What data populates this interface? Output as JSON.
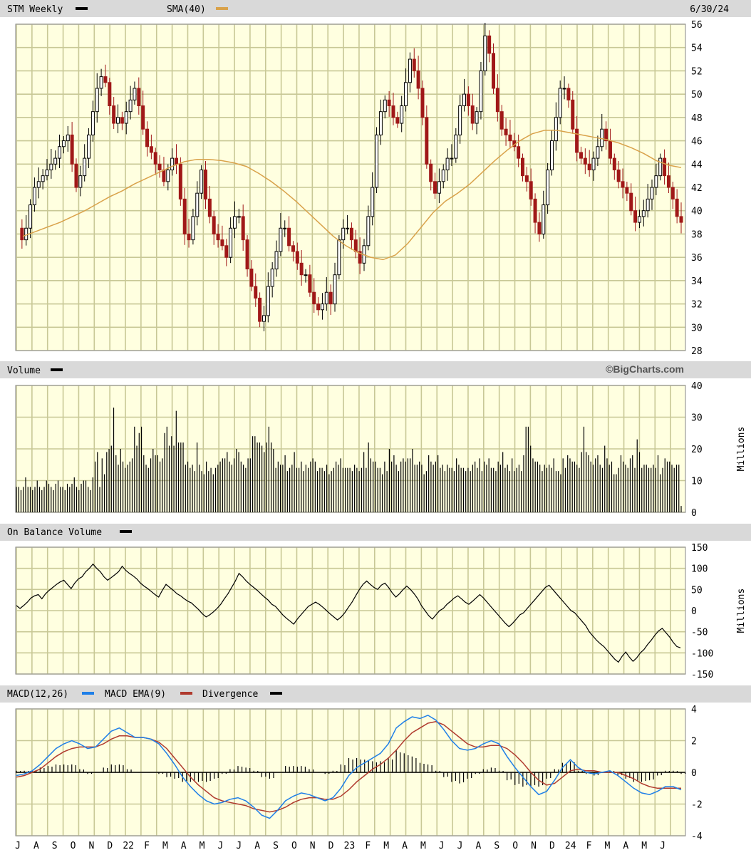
{
  "header": {
    "ticker_label": "STM Weekly",
    "sma_label": "SMA(40)",
    "date": "6/30/24"
  },
  "volume_header": {
    "label": "Volume",
    "watermark": "©BigCharts.com"
  },
  "obv_header": {
    "label": "On Balance Volume"
  },
  "macd_header": {
    "macd_label": "MACD(12,26)",
    "ema_label": "MACD EMA(9)",
    "div_label": "Divergence"
  },
  "x_axis": {
    "month_labels": [
      "J",
      "A",
      "S",
      "O",
      "N",
      "D",
      "22",
      "F",
      "M",
      "A",
      "M",
      "J",
      "J",
      "A",
      "S",
      "O",
      "N",
      "D",
      "23",
      "F",
      "M",
      "A",
      "M",
      "J",
      "J",
      "A",
      "S",
      "O",
      "N",
      "D",
      "24",
      "F",
      "M",
      "A",
      "M",
      "J"
    ]
  },
  "colors": {
    "plot_bg": "#ffffe0",
    "grid": "#c8c896",
    "up": "#000000",
    "down": "#a01818",
    "sma": "#d9a24a",
    "macd": "#1e7fe8",
    "ema": "#b03a2e",
    "header_bg": "#d9d9d9"
  },
  "chart_data": [
    {
      "type": "candlestick",
      "title": "STM Weekly",
      "ylim": [
        28,
        56
      ],
      "yticks": [
        28,
        30,
        32,
        34,
        36,
        38,
        40,
        42,
        44,
        46,
        48,
        50,
        52,
        54,
        56
      ],
      "price_path": [
        38.5,
        37.5,
        38.5,
        40.5,
        42,
        42.5,
        43,
        43.5,
        44,
        44.5,
        45.5,
        46,
        46.5,
        44,
        42,
        43,
        44.5,
        46.5,
        48.5,
        50.5,
        51.5,
        51,
        49,
        47.5,
        48,
        47.5,
        48.5,
        49.5,
        50.5,
        49,
        47,
        45.5,
        45,
        44,
        43.5,
        42.5,
        43.5,
        44.5,
        44,
        41,
        38,
        37.5,
        39.5,
        41.5,
        43.5,
        41,
        39.5,
        38,
        37.5,
        37,
        36,
        38.5,
        39.5,
        39.5,
        37.5,
        35,
        33.5,
        32.5,
        30.5,
        31,
        33.5,
        35,
        36.5,
        38.5,
        38.5,
        37,
        36.5,
        35.5,
        34.5,
        34.5,
        33,
        32,
        31.5,
        32,
        33,
        32,
        34.5,
        37.5,
        38.5,
        38.5,
        37.5,
        36.5,
        35.5,
        37,
        39.5,
        42,
        46.5,
        48.5,
        49.5,
        49,
        48,
        47.5,
        49,
        51,
        53,
        52,
        50.5,
        48,
        44,
        42.5,
        41.5,
        42.5,
        43.5,
        44.5,
        44.5,
        46.5,
        49,
        50,
        49,
        47.5,
        48.5,
        52,
        55,
        53.5,
        50.5,
        48.5,
        47,
        46.5,
        46,
        45.5,
        44.5,
        43,
        42.5,
        41,
        39,
        38,
        40.5,
        43.5,
        46,
        48,
        50.5,
        50.5,
        49.5,
        47,
        45,
        44.5,
        44,
        43.5,
        44.5,
        45.5,
        47,
        46,
        44.5,
        43.5,
        42.5,
        42,
        41.5,
        40,
        39,
        39.5,
        40,
        41,
        42,
        43,
        44.5,
        43,
        42,
        41,
        39.5,
        39
      ],
      "sma": [
        37.8,
        38.2,
        38.6,
        39,
        39.5,
        40,
        40.6,
        41.2,
        41.7,
        42.3,
        42.8,
        43.3,
        43.8,
        44.2,
        44.4,
        44.4,
        44.3,
        44.1,
        43.8,
        43.2,
        42.5,
        41.7,
        40.8,
        39.8,
        38.8,
        37.8,
        37,
        36.4,
        36,
        35.8,
        36.2,
        37.2,
        38.5,
        39.8,
        40.8,
        41.5,
        42.3,
        43.3,
        44.3,
        45.2,
        46,
        46.6,
        46.9,
        46.9,
        46.7,
        46.5,
        46.3,
        46.1,
        45.8,
        45.4,
        44.9,
        44.3,
        43.9,
        43.7
      ]
    },
    {
      "type": "bar",
      "title": "Volume",
      "ylabel": "Millions",
      "ylim": [
        0,
        40
      ],
      "yticks": [
        0,
        10,
        20,
        30,
        40
      ],
      "values": [
        8,
        8,
        7,
        8,
        11,
        8,
        8,
        7,
        8,
        10,
        8,
        7,
        8,
        10,
        9,
        8,
        7,
        9,
        10,
        8,
        8,
        7,
        9,
        8,
        9,
        11,
        8,
        7,
        9,
        10,
        10,
        8,
        7,
        11,
        16,
        19,
        8,
        17,
        12,
        19,
        20,
        21,
        33,
        18,
        15,
        20,
        16,
        14,
        15,
        16,
        17,
        27,
        21,
        25,
        27,
        18,
        15,
        14,
        17,
        20,
        18,
        18,
        16,
        17,
        25,
        27,
        21,
        24,
        21,
        32,
        22,
        22,
        22,
        15,
        16,
        14,
        15,
        13,
        22,
        15,
        13,
        12,
        16,
        13,
        14,
        12,
        14,
        15,
        16,
        17,
        17,
        19,
        16,
        15,
        17,
        20,
        19,
        16,
        15,
        14,
        17,
        17,
        24,
        24,
        22,
        22,
        21,
        19,
        22,
        27,
        22,
        20,
        14,
        16,
        15,
        15,
        18,
        13,
        14,
        15,
        19,
        14,
        14,
        16,
        13,
        15,
        14,
        16,
        17,
        16,
        13,
        14,
        14,
        13,
        15,
        12,
        13,
        14,
        16,
        15,
        17,
        14,
        14,
        14,
        14,
        13,
        15,
        14,
        13,
        14,
        19,
        14,
        22,
        17,
        16,
        16,
        14,
        14,
        12,
        16,
        13,
        20,
        16,
        18,
        15,
        13,
        16,
        17,
        16,
        17,
        17,
        20,
        15,
        15,
        16,
        15,
        12,
        13,
        18,
        16,
        15,
        16,
        18,
        14,
        15,
        13,
        15,
        14,
        14,
        13,
        17,
        15,
        14,
        14,
        13,
        14,
        13,
        15,
        16,
        14,
        17,
        13,
        16,
        15,
        17,
        14,
        14,
        13,
        16,
        15,
        19,
        14,
        15,
        13,
        17,
        13,
        14,
        15,
        13,
        18,
        27,
        27,
        21,
        17,
        16,
        16,
        15,
        13,
        15,
        14,
        15,
        14,
        17,
        13,
        13,
        12,
        17,
        14,
        18,
        17,
        16,
        16,
        15,
        14,
        19,
        27,
        19,
        18,
        16,
        15,
        17,
        18,
        15,
        14,
        21,
        17,
        15,
        16,
        12,
        12,
        14,
        18,
        16,
        15,
        14,
        17,
        18,
        14,
        23,
        19,
        14,
        15,
        15,
        14,
        14,
        15,
        14,
        18,
        12,
        14,
        17,
        16,
        16,
        15,
        14,
        15,
        15,
        2
      ]
    },
    {
      "type": "line",
      "title": "On Balance Volume",
      "ylabel": "Millions",
      "ylim": [
        -150,
        150
      ],
      "yticks": [
        -150,
        -100,
        -50,
        0,
        50,
        100,
        150
      ],
      "values": [
        12,
        5,
        12,
        20,
        30,
        35,
        38,
        28,
        40,
        48,
        55,
        62,
        68,
        72,
        62,
        52,
        65,
        75,
        80,
        92,
        100,
        110,
        100,
        92,
        80,
        72,
        78,
        85,
        92,
        105,
        95,
        88,
        82,
        75,
        65,
        58,
        52,
        45,
        38,
        32,
        48,
        62,
        55,
        48,
        40,
        35,
        28,
        22,
        18,
        10,
        2,
        -8,
        -15,
        -10,
        -3,
        5,
        15,
        28,
        40,
        55,
        70,
        88,
        80,
        70,
        62,
        55,
        48,
        40,
        32,
        25,
        15,
        10,
        0,
        -10,
        -18,
        -25,
        -32,
        -20,
        -10,
        0,
        10,
        15,
        20,
        15,
        8,
        0,
        -8,
        -15,
        -22,
        -15,
        -5,
        8,
        20,
        35,
        50,
        62,
        70,
        62,
        55,
        50,
        60,
        65,
        55,
        42,
        32,
        40,
        50,
        58,
        50,
        40,
        28,
        12,
        0,
        -12,
        -20,
        -10,
        0,
        5,
        15,
        22,
        30,
        35,
        28,
        20,
        15,
        22,
        30,
        38,
        30,
        20,
        10,
        0,
        -10,
        -20,
        -30,
        -38,
        -30,
        -20,
        -10,
        -5,
        5,
        15,
        25,
        35,
        45,
        55,
        60,
        50,
        40,
        30,
        20,
        10,
        0,
        -5,
        -15,
        -25,
        -35,
        -50,
        -60,
        -70,
        -78,
        -85,
        -95,
        -105,
        -115,
        -122,
        -108,
        -98,
        -110,
        -120,
        -112,
        -100,
        -92,
        -80,
        -70,
        -58,
        -48,
        -42,
        -52,
        -62,
        -75,
        -85,
        -88
      ]
    },
    {
      "type": "line",
      "title": "MACD(12,26)",
      "ylim": [
        -4,
        4
      ],
      "yticks": [
        -4,
        -2,
        0,
        2,
        4
      ],
      "series": [
        {
          "name": "MACD(12,26)",
          "values": [
            -0.2,
            -0.1,
            0.1,
            0.5,
            1.0,
            1.5,
            1.8,
            2.0,
            1.8,
            1.5,
            1.6,
            2.1,
            2.6,
            2.8,
            2.5,
            2.2,
            2.2,
            2.1,
            1.8,
            1.2,
            0.5,
            -0.3,
            -0.9,
            -1.4,
            -1.8,
            -2.0,
            -1.9,
            -1.7,
            -1.6,
            -1.8,
            -2.2,
            -2.7,
            -2.9,
            -2.4,
            -1.8,
            -1.5,
            -1.3,
            -1.4,
            -1.6,
            -1.8,
            -1.6,
            -1.0,
            -0.2,
            0.3,
            0.6,
            0.9,
            1.2,
            1.8,
            2.8,
            3.2,
            3.5,
            3.4,
            3.6,
            3.3,
            2.7,
            2.0,
            1.5,
            1.4,
            1.5,
            1.8,
            2.0,
            1.8,
            1.0,
            0.3,
            -0.3,
            -0.9,
            -1.4,
            -1.2,
            -0.5,
            0.3,
            0.8,
            0.3,
            0.0,
            -0.1,
            0.0,
            0.1,
            -0.2,
            -0.6,
            -1.0,
            -1.3,
            -1.4,
            -1.2,
            -0.9,
            -0.9,
            -1.1
          ]
        },
        {
          "name": "MACD EMA(9)",
          "values": [
            -0.3,
            -0.2,
            0.0,
            0.2,
            0.6,
            1.0,
            1.3,
            1.5,
            1.6,
            1.6,
            1.6,
            1.8,
            2.1,
            2.3,
            2.3,
            2.2,
            2.2,
            2.1,
            1.9,
            1.5,
            0.9,
            0.3,
            -0.3,
            -0.8,
            -1.2,
            -1.6,
            -1.8,
            -1.9,
            -2.0,
            -2.1,
            -2.3,
            -2.4,
            -2.5,
            -2.4,
            -2.2,
            -1.9,
            -1.7,
            -1.6,
            -1.6,
            -1.7,
            -1.7,
            -1.5,
            -1.1,
            -0.6,
            -0.2,
            0.2,
            0.5,
            0.9,
            1.4,
            2.0,
            2.5,
            2.8,
            3.1,
            3.2,
            3.0,
            2.6,
            2.2,
            1.8,
            1.6,
            1.6,
            1.7,
            1.7,
            1.5,
            1.1,
            0.6,
            0.0,
            -0.5,
            -0.8,
            -0.7,
            -0.3,
            0.1,
            0.2,
            0.1,
            0.1,
            0.0,
            0.0,
            0.0,
            -0.2,
            -0.4,
            -0.7,
            -0.9,
            -1.0,
            -1.0,
            -1.0,
            -1.0
          ]
        },
        {
          "name": "Divergence",
          "values": [
            0.1,
            0.1,
            0.1,
            0.3,
            0.4,
            0.5,
            0.5,
            0.5,
            0.2,
            -0.1,
            0.0,
            0.3,
            0.5,
            0.5,
            0.2,
            0.0,
            0.0,
            0.0,
            -0.1,
            -0.3,
            -0.4,
            -0.6,
            -0.6,
            -0.6,
            -0.6,
            -0.4,
            -0.1,
            0.2,
            0.4,
            0.3,
            0.1,
            -0.3,
            -0.4,
            0.0,
            0.4,
            0.4,
            0.4,
            0.2,
            0.0,
            -0.1,
            0.1,
            0.5,
            0.9,
            0.9,
            0.8,
            0.7,
            0.7,
            0.9,
            1.4,
            1.2,
            1.0,
            0.6,
            0.5,
            0.1,
            -0.3,
            -0.6,
            -0.7,
            -0.4,
            -0.1,
            0.2,
            0.3,
            0.1,
            -0.5,
            -0.8,
            -0.9,
            -0.9,
            -0.9,
            -0.4,
            0.2,
            0.6,
            0.7,
            0.1,
            -0.1,
            -0.2,
            0.0,
            0.1,
            -0.2,
            -0.4,
            -0.6,
            -0.6,
            -0.5,
            -0.2,
            0.1,
            0.1,
            -0.1
          ]
        }
      ]
    }
  ]
}
